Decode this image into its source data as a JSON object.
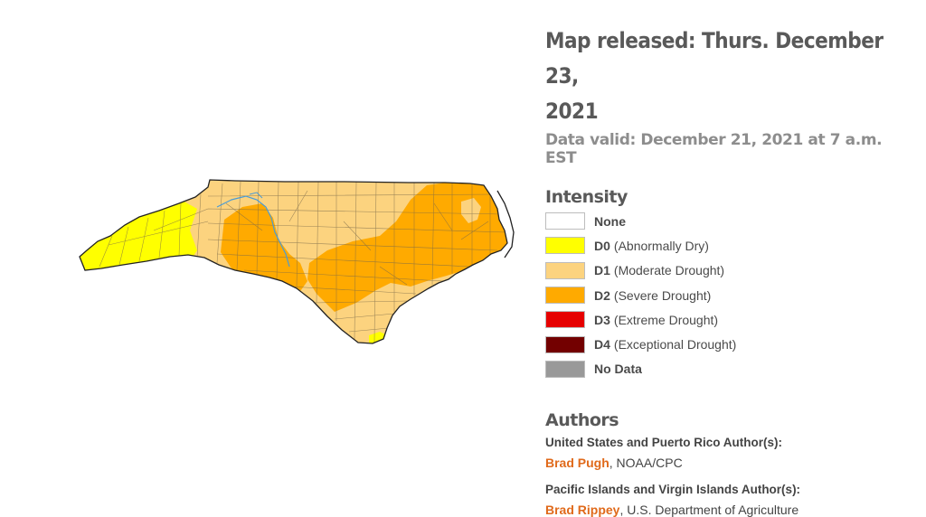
{
  "map": {
    "region": "North Carolina"
  },
  "header": {
    "released_line1": "Map released: Thurs. December 23,",
    "released_line2": "2021",
    "valid": "Data valid: December 21, 2021 at 7 a.m. EST"
  },
  "legend": {
    "heading": "Intensity",
    "items": [
      {
        "code": "None",
        "desc": "",
        "color": "#ffffff"
      },
      {
        "code": "D0",
        "desc": "(Abnormally Dry)",
        "color": "#ffff00"
      },
      {
        "code": "D1",
        "desc": "(Moderate Drought)",
        "color": "#fcd37f"
      },
      {
        "code": "D2",
        "desc": "(Severe Drought)",
        "color": "#ffaa00"
      },
      {
        "code": "D3",
        "desc": "(Extreme Drought)",
        "color": "#e60000"
      },
      {
        "code": "D4",
        "desc": "(Exceptional Drought)",
        "color": "#730000"
      },
      {
        "code": "No Data",
        "desc": "",
        "color": "#999999"
      }
    ]
  },
  "authors": {
    "heading": "Authors",
    "group1_label": "United States and Puerto Rico Author(s):",
    "group1_name": "Brad Pugh",
    "group1_org": ", NOAA/CPC",
    "group2_label": "Pacific Islands and Virgin Islands Author(s):",
    "group2_name": "Brad Rippey",
    "group2_org": ", U.S. Department of Agriculture"
  }
}
